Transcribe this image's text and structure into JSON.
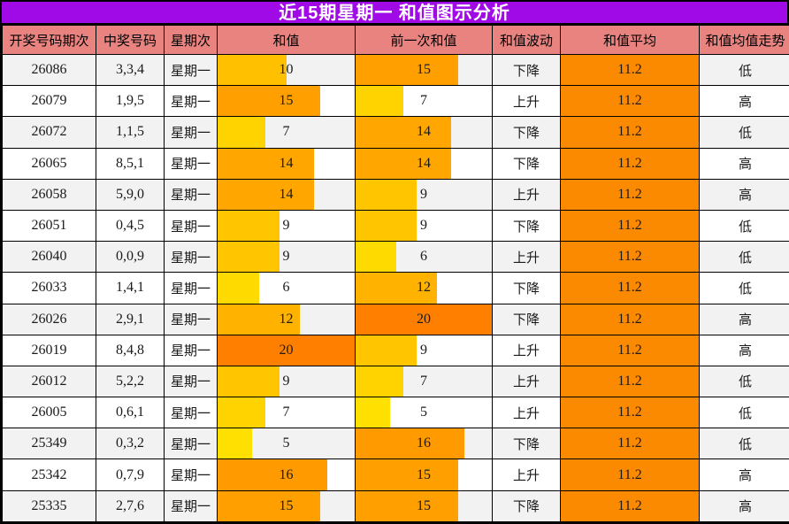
{
  "title": "近15期星期一 和值图示分析",
  "colors": {
    "title_bg": "#A00AE6",
    "title_text": "#FFFFFF",
    "header_bg": "#E8837F",
    "average_cell_bg": "#FB8A00",
    "stripe_row_bg": "#F2F2F2",
    "plain_row_bg": "#FFFFFF",
    "grid_border": "#000000",
    "cell_text": "#1A1A1A"
  },
  "chart_data": {
    "type": "table",
    "title": "近15期星期一 和值图示分析",
    "columns": [
      "开奖号码期次",
      "中奖号码",
      "星期次",
      "和值",
      "前一次和值",
      "和值波动",
      "和值平均",
      "和值均值走势"
    ],
    "embedded_bar_columns": [
      "和值",
      "前一次和值"
    ],
    "bar_scale": {
      "bar_full_value": 20,
      "color_min_value": 5,
      "color_max_value": 20,
      "color_min": "#FFE000",
      "color_max": "#FF8000"
    },
    "rows": [
      {
        "period": "26086",
        "numbers": "3,3,4",
        "weekday": "星期一",
        "sum": 10,
        "prev_sum": 15,
        "fluctuation": "下降",
        "average": "11.2",
        "trend": "低"
      },
      {
        "period": "26079",
        "numbers": "1,9,5",
        "weekday": "星期一",
        "sum": 15,
        "prev_sum": 7,
        "fluctuation": "上升",
        "average": "11.2",
        "trend": "高"
      },
      {
        "period": "26072",
        "numbers": "1,1,5",
        "weekday": "星期一",
        "sum": 7,
        "prev_sum": 14,
        "fluctuation": "下降",
        "average": "11.2",
        "trend": "低"
      },
      {
        "period": "26065",
        "numbers": "8,5,1",
        "weekday": "星期一",
        "sum": 14,
        "prev_sum": 14,
        "fluctuation": "下降",
        "average": "11.2",
        "trend": "高"
      },
      {
        "period": "26058",
        "numbers": "5,9,0",
        "weekday": "星期一",
        "sum": 14,
        "prev_sum": 9,
        "fluctuation": "上升",
        "average": "11.2",
        "trend": "高"
      },
      {
        "period": "26051",
        "numbers": "0,4,5",
        "weekday": "星期一",
        "sum": 9,
        "prev_sum": 9,
        "fluctuation": "下降",
        "average": "11.2",
        "trend": "低"
      },
      {
        "period": "26040",
        "numbers": "0,0,9",
        "weekday": "星期一",
        "sum": 9,
        "prev_sum": 6,
        "fluctuation": "上升",
        "average": "11.2",
        "trend": "低"
      },
      {
        "period": "26033",
        "numbers": "1,4,1",
        "weekday": "星期一",
        "sum": 6,
        "prev_sum": 12,
        "fluctuation": "下降",
        "average": "11.2",
        "trend": "低"
      },
      {
        "period": "26026",
        "numbers": "2,9,1",
        "weekday": "星期一",
        "sum": 12,
        "prev_sum": 20,
        "fluctuation": "下降",
        "average": "11.2",
        "trend": "高"
      },
      {
        "period": "26019",
        "numbers": "8,4,8",
        "weekday": "星期一",
        "sum": 20,
        "prev_sum": 9,
        "fluctuation": "上升",
        "average": "11.2",
        "trend": "高"
      },
      {
        "period": "26012",
        "numbers": "5,2,2",
        "weekday": "星期一",
        "sum": 9,
        "prev_sum": 7,
        "fluctuation": "上升",
        "average": "11.2",
        "trend": "低"
      },
      {
        "period": "26005",
        "numbers": "0,6,1",
        "weekday": "星期一",
        "sum": 7,
        "prev_sum": 5,
        "fluctuation": "上升",
        "average": "11.2",
        "trend": "低"
      },
      {
        "period": "25349",
        "numbers": "0,3,2",
        "weekday": "星期一",
        "sum": 5,
        "prev_sum": 16,
        "fluctuation": "下降",
        "average": "11.2",
        "trend": "低"
      },
      {
        "period": "25342",
        "numbers": "0,7,9",
        "weekday": "星期一",
        "sum": 16,
        "prev_sum": 15,
        "fluctuation": "上升",
        "average": "11.2",
        "trend": "高"
      },
      {
        "period": "25335",
        "numbers": "2,7,6",
        "weekday": "星期一",
        "sum": 15,
        "prev_sum": 15,
        "fluctuation": "下降",
        "average": "11.2",
        "trend": "高"
      }
    ]
  }
}
